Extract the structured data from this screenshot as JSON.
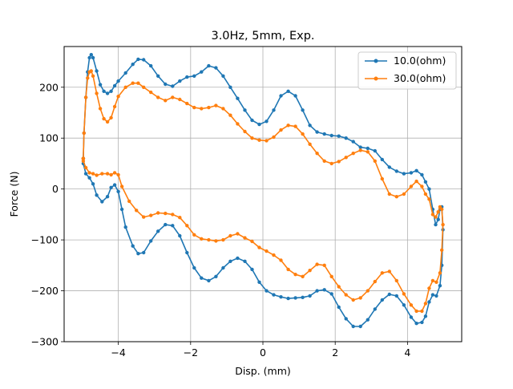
{
  "chart_data": {
    "type": "line",
    "title": "3.0Hz, 5mm, Exp.",
    "xlabel": "Disp. (mm)",
    "ylabel": "Force (N)",
    "xlim": [
      -5.5,
      5.5
    ],
    "ylim": [
      -300,
      280
    ],
    "xticks": [
      -4,
      -2,
      0,
      2,
      4
    ],
    "yticks": [
      -300,
      -200,
      -100,
      0,
      100,
      200
    ],
    "xtick_labels": [
      "−4",
      "−2",
      "0",
      "2",
      "4"
    ],
    "ytick_labels": [
      "−300",
      "−200",
      "−100",
      "0",
      "100",
      "200"
    ],
    "grid": true,
    "legend_position": "top-right",
    "series": [
      {
        "name": "10.0(ohm)",
        "color": "#1f77b4",
        "marker": "circle",
        "points": [
          [
            -4.97,
            60
          ],
          [
            -4.95,
            110
          ],
          [
            -4.9,
            180
          ],
          [
            -4.85,
            230
          ],
          [
            -4.8,
            258
          ],
          [
            -4.75,
            264
          ],
          [
            -4.7,
            258
          ],
          [
            -4.6,
            232
          ],
          [
            -4.5,
            205
          ],
          [
            -4.4,
            192
          ],
          [
            -4.3,
            188
          ],
          [
            -4.2,
            192
          ],
          [
            -4.1,
            203
          ],
          [
            -4.0,
            212
          ],
          [
            -3.8,
            228
          ],
          [
            -3.6,
            245
          ],
          [
            -3.45,
            255
          ],
          [
            -3.3,
            254
          ],
          [
            -3.1,
            242
          ],
          [
            -2.9,
            222
          ],
          [
            -2.7,
            206
          ],
          [
            -2.5,
            202
          ],
          [
            -2.3,
            212
          ],
          [
            -2.1,
            220
          ],
          [
            -1.9,
            222
          ],
          [
            -1.7,
            230
          ],
          [
            -1.5,
            242
          ],
          [
            -1.3,
            238
          ],
          [
            -1.1,
            222
          ],
          [
            -0.9,
            200
          ],
          [
            -0.7,
            178
          ],
          [
            -0.5,
            155
          ],
          [
            -0.3,
            135
          ],
          [
            -0.1,
            127
          ],
          [
            0.1,
            133
          ],
          [
            0.3,
            155
          ],
          [
            0.5,
            183
          ],
          [
            0.7,
            192
          ],
          [
            0.9,
            183
          ],
          [
            1.1,
            155
          ],
          [
            1.3,
            125
          ],
          [
            1.5,
            112
          ],
          [
            1.7,
            108
          ],
          [
            1.9,
            105
          ],
          [
            2.1,
            104
          ],
          [
            2.3,
            100
          ],
          [
            2.5,
            93
          ],
          [
            2.7,
            82
          ],
          [
            2.9,
            80
          ],
          [
            3.1,
            75
          ],
          [
            3.3,
            58
          ],
          [
            3.5,
            43
          ],
          [
            3.7,
            35
          ],
          [
            3.9,
            30
          ],
          [
            4.1,
            32
          ],
          [
            4.25,
            36
          ],
          [
            4.4,
            28
          ],
          [
            4.5,
            14
          ],
          [
            4.6,
            0
          ],
          [
            4.7,
            -40
          ],
          [
            4.78,
            -70
          ],
          [
            4.85,
            -60
          ],
          [
            4.9,
            -40
          ],
          [
            4.95,
            -35
          ],
          [
            4.98,
            -80
          ],
          [
            4.95,
            -150
          ],
          [
            4.9,
            -190
          ],
          [
            4.8,
            -210
          ],
          [
            4.7,
            -208
          ],
          [
            4.6,
            -222
          ],
          [
            4.5,
            -250
          ],
          [
            4.4,
            -262
          ],
          [
            4.25,
            -264
          ],
          [
            4.1,
            -252
          ],
          [
            3.9,
            -228
          ],
          [
            3.7,
            -210
          ],
          [
            3.5,
            -207
          ],
          [
            3.3,
            -218
          ],
          [
            3.1,
            -236
          ],
          [
            2.9,
            -257
          ],
          [
            2.7,
            -270
          ],
          [
            2.5,
            -270
          ],
          [
            2.3,
            -255
          ],
          [
            2.1,
            -232
          ],
          [
            1.9,
            -206
          ],
          [
            1.7,
            -198
          ],
          [
            1.5,
            -200
          ],
          [
            1.3,
            -210
          ],
          [
            1.1,
            -213
          ],
          [
            0.9,
            -214
          ],
          [
            0.7,
            -215
          ],
          [
            0.5,
            -212
          ],
          [
            0.3,
            -208
          ],
          [
            0.1,
            -200
          ],
          [
            -0.1,
            -183
          ],
          [
            -0.3,
            -158
          ],
          [
            -0.5,
            -142
          ],
          [
            -0.7,
            -136
          ],
          [
            -0.9,
            -142
          ],
          [
            -1.1,
            -155
          ],
          [
            -1.3,
            -172
          ],
          [
            -1.5,
            -180
          ],
          [
            -1.7,
            -175
          ],
          [
            -1.9,
            -155
          ],
          [
            -2.1,
            -125
          ],
          [
            -2.3,
            -92
          ],
          [
            -2.5,
            -72
          ],
          [
            -2.7,
            -70
          ],
          [
            -2.9,
            -83
          ],
          [
            -3.1,
            -102
          ],
          [
            -3.3,
            -125
          ],
          [
            -3.45,
            -127
          ],
          [
            -3.6,
            -112
          ],
          [
            -3.8,
            -75
          ],
          [
            -3.9,
            -40
          ],
          [
            -4.0,
            -5
          ],
          [
            -4.1,
            8
          ],
          [
            -4.2,
            3
          ],
          [
            -4.3,
            -15
          ],
          [
            -4.45,
            -25
          ],
          [
            -4.6,
            -12
          ],
          [
            -4.7,
            10
          ],
          [
            -4.8,
            22
          ],
          [
            -4.9,
            30
          ],
          [
            -4.97,
            50
          ],
          [
            -4.97,
            60
          ]
        ]
      },
      {
        "name": "30.0(ohm)",
        "color": "#ff7f0e",
        "marker": "circle",
        "points": [
          [
            -4.97,
            60
          ],
          [
            -4.95,
            110
          ],
          [
            -4.9,
            180
          ],
          [
            -4.85,
            218
          ],
          [
            -4.8,
            230
          ],
          [
            -4.75,
            232
          ],
          [
            -4.7,
            222
          ],
          [
            -4.6,
            188
          ],
          [
            -4.5,
            158
          ],
          [
            -4.4,
            138
          ],
          [
            -4.3,
            132
          ],
          [
            -4.2,
            140
          ],
          [
            -4.1,
            162
          ],
          [
            -4.0,
            182
          ],
          [
            -3.8,
            200
          ],
          [
            -3.6,
            208
          ],
          [
            -3.45,
            208
          ],
          [
            -3.3,
            200
          ],
          [
            -3.1,
            190
          ],
          [
            -2.9,
            180
          ],
          [
            -2.7,
            174
          ],
          [
            -2.5,
            180
          ],
          [
            -2.3,
            176
          ],
          [
            -2.1,
            168
          ],
          [
            -1.9,
            160
          ],
          [
            -1.7,
            158
          ],
          [
            -1.5,
            160
          ],
          [
            -1.3,
            164
          ],
          [
            -1.1,
            158
          ],
          [
            -0.9,
            145
          ],
          [
            -0.7,
            128
          ],
          [
            -0.5,
            113
          ],
          [
            -0.3,
            100
          ],
          [
            -0.1,
            96
          ],
          [
            0.1,
            95
          ],
          [
            0.3,
            102
          ],
          [
            0.5,
            116
          ],
          [
            0.7,
            125
          ],
          [
            0.9,
            123
          ],
          [
            1.1,
            108
          ],
          [
            1.3,
            88
          ],
          [
            1.5,
            70
          ],
          [
            1.7,
            55
          ],
          [
            1.9,
            50
          ],
          [
            2.1,
            54
          ],
          [
            2.3,
            62
          ],
          [
            2.5,
            70
          ],
          [
            2.7,
            76
          ],
          [
            2.9,
            73
          ],
          [
            3.1,
            55
          ],
          [
            3.3,
            20
          ],
          [
            3.5,
            -10
          ],
          [
            3.7,
            -15
          ],
          [
            3.9,
            -10
          ],
          [
            4.1,
            5
          ],
          [
            4.25,
            15
          ],
          [
            4.4,
            5
          ],
          [
            4.5,
            -10
          ],
          [
            4.6,
            -20
          ],
          [
            4.7,
            -50
          ],
          [
            4.78,
            -55
          ],
          [
            4.85,
            -45
          ],
          [
            4.9,
            -35
          ],
          [
            4.95,
            -40
          ],
          [
            4.98,
            -70
          ],
          [
            4.95,
            -120
          ],
          [
            4.9,
            -165
          ],
          [
            4.8,
            -183
          ],
          [
            4.7,
            -180
          ],
          [
            4.6,
            -195
          ],
          [
            4.5,
            -225
          ],
          [
            4.4,
            -240
          ],
          [
            4.25,
            -240
          ],
          [
            4.1,
            -228
          ],
          [
            3.9,
            -206
          ],
          [
            3.7,
            -180
          ],
          [
            3.5,
            -162
          ],
          [
            3.3,
            -165
          ],
          [
            3.1,
            -182
          ],
          [
            2.9,
            -200
          ],
          [
            2.7,
            -214
          ],
          [
            2.5,
            -218
          ],
          [
            2.3,
            -208
          ],
          [
            2.1,
            -192
          ],
          [
            1.9,
            -172
          ],
          [
            1.7,
            -150
          ],
          [
            1.5,
            -148
          ],
          [
            1.3,
            -160
          ],
          [
            1.1,
            -172
          ],
          [
            0.9,
            -168
          ],
          [
            0.7,
            -158
          ],
          [
            0.5,
            -140
          ],
          [
            0.3,
            -130
          ],
          [
            0.1,
            -122
          ],
          [
            -0.1,
            -115
          ],
          [
            -0.3,
            -103
          ],
          [
            -0.5,
            -96
          ],
          [
            -0.7,
            -88
          ],
          [
            -0.9,
            -92
          ],
          [
            -1.1,
            -100
          ],
          [
            -1.3,
            -102
          ],
          [
            -1.5,
            -100
          ],
          [
            -1.7,
            -98
          ],
          [
            -1.9,
            -90
          ],
          [
            -2.1,
            -72
          ],
          [
            -2.3,
            -56
          ],
          [
            -2.5,
            -50
          ],
          [
            -2.7,
            -48
          ],
          [
            -2.9,
            -47
          ],
          [
            -3.1,
            -52
          ],
          [
            -3.3,
            -55
          ],
          [
            -3.5,
            -42
          ],
          [
            -3.7,
            -24
          ],
          [
            -3.9,
            5
          ],
          [
            -4.0,
            28
          ],
          [
            -4.1,
            32
          ],
          [
            -4.2,
            28
          ],
          [
            -4.3,
            30
          ],
          [
            -4.45,
            30
          ],
          [
            -4.6,
            27
          ],
          [
            -4.7,
            30
          ],
          [
            -4.8,
            32
          ],
          [
            -4.9,
            42
          ],
          [
            -4.97,
            55
          ],
          [
            -4.97,
            60
          ]
        ]
      }
    ]
  }
}
